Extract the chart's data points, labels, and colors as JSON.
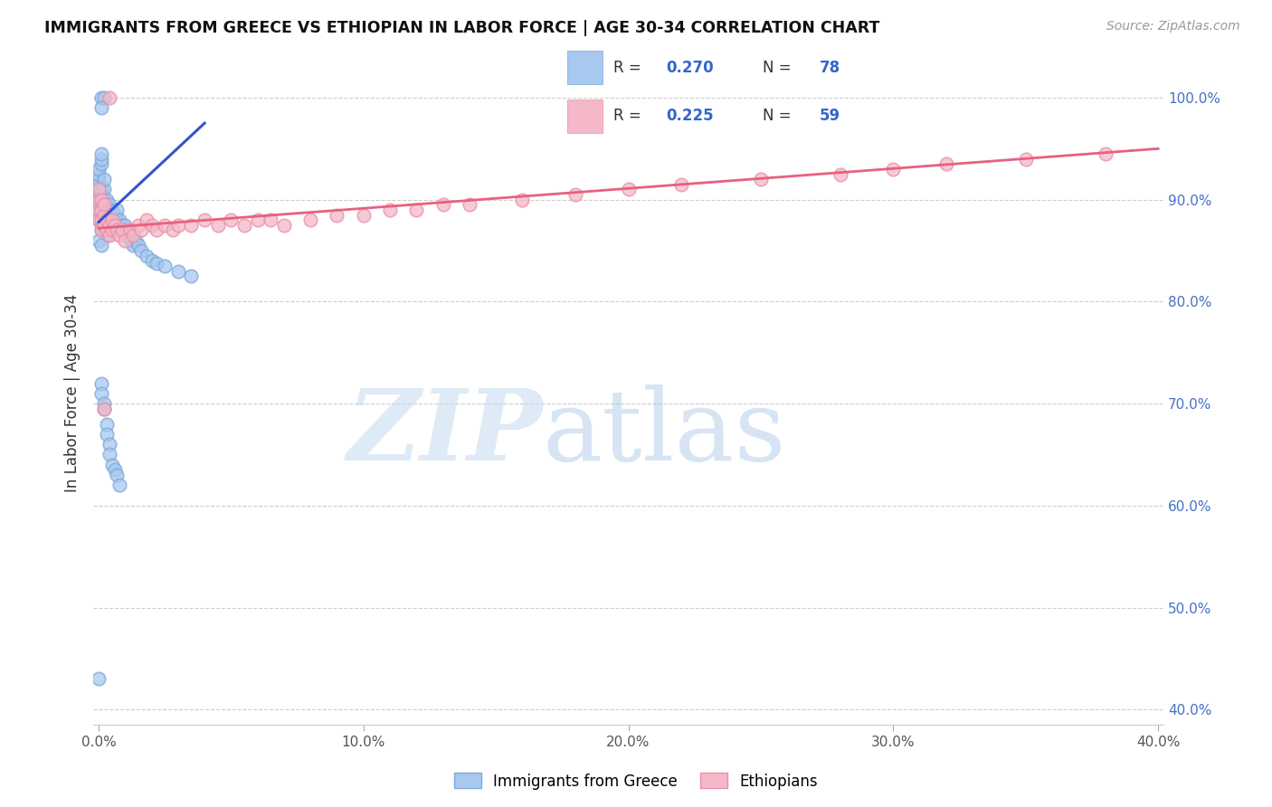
{
  "title": "IMMIGRANTS FROM GREECE VS ETHIOPIAN IN LABOR FORCE | AGE 30-34 CORRELATION CHART",
  "source": "Source: ZipAtlas.com",
  "ylabel": "In Labor Force | Age 30-34",
  "xlim": [
    -0.002,
    0.402
  ],
  "ylim": [
    0.385,
    1.035
  ],
  "xticks": [
    0.0,
    0.1,
    0.2,
    0.3,
    0.4
  ],
  "xticklabels": [
    "0.0%",
    "10.0%",
    "20.0%",
    "30.0%",
    "40.0%"
  ],
  "yticks_right": [
    0.4,
    0.5,
    0.6,
    0.7,
    0.8,
    0.9,
    1.0
  ],
  "yticklabels_right": [
    "40.0%",
    "50.0%",
    "60.0%",
    "70.0%",
    "80.0%",
    "90.0%",
    "100.0%"
  ],
  "greece_color": "#a8c8f0",
  "greece_edge": "#7aaad8",
  "ethiopia_color": "#f5b8c8",
  "ethiopia_edge": "#e890a8",
  "greece_line_color": "#3355cc",
  "ethiopia_line_color": "#e86080",
  "greece_R": 0.27,
  "greece_N": 78,
  "ethiopia_R": 0.225,
  "ethiopia_N": 59,
  "legend_labels": [
    "Immigrants from Greece",
    "Ethiopians"
  ],
  "greece_x": [
    0.0,
    0.0,
    0.0,
    0.0,
    0.0,
    0.0,
    0.0,
    0.0,
    0.0,
    0.0,
    0.001,
    0.001,
    0.001,
    0.001,
    0.001,
    0.001,
    0.001,
    0.001,
    0.001,
    0.001,
    0.001,
    0.001,
    0.002,
    0.002,
    0.002,
    0.002,
    0.002,
    0.002,
    0.003,
    0.003,
    0.003,
    0.003,
    0.004,
    0.004,
    0.004,
    0.004,
    0.005,
    0.005,
    0.005,
    0.006,
    0.006,
    0.007,
    0.007,
    0.008,
    0.008,
    0.009,
    0.01,
    0.01,
    0.011,
    0.012,
    0.013,
    0.014,
    0.015,
    0.016,
    0.018,
    0.02,
    0.022,
    0.025,
    0.03,
    0.035,
    0.0,
    0.0,
    0.001,
    0.001,
    0.001,
    0.002,
    0.002,
    0.003,
    0.003,
    0.004,
    0.004,
    0.005,
    0.006,
    0.007,
    0.008,
    0.001,
    0.002,
    0.001
  ],
  "greece_y": [
    0.88,
    0.89,
    0.895,
    0.9,
    0.905,
    0.91,
    0.915,
    0.92,
    0.925,
    0.93,
    0.87,
    0.875,
    0.88,
    0.885,
    0.89,
    0.895,
    0.9,
    0.905,
    0.91,
    0.935,
    0.94,
    0.945,
    0.87,
    0.875,
    0.88,
    0.9,
    0.91,
    0.92,
    0.865,
    0.875,
    0.89,
    0.9,
    0.87,
    0.88,
    0.89,
    0.895,
    0.875,
    0.88,
    0.89,
    0.88,
    0.885,
    0.88,
    0.89,
    0.875,
    0.88,
    0.875,
    0.87,
    0.875,
    0.865,
    0.86,
    0.855,
    0.86,
    0.855,
    0.85,
    0.845,
    0.84,
    0.838,
    0.835,
    0.83,
    0.825,
    0.86,
    0.43,
    0.855,
    0.72,
    0.71,
    0.7,
    0.695,
    0.68,
    0.67,
    0.66,
    0.65,
    0.64,
    0.635,
    0.63,
    0.62,
    1.0,
    1.0,
    0.99
  ],
  "ethiopia_x": [
    0.0,
    0.0,
    0.0,
    0.0,
    0.001,
    0.001,
    0.001,
    0.001,
    0.002,
    0.002,
    0.002,
    0.003,
    0.003,
    0.004,
    0.004,
    0.005,
    0.005,
    0.006,
    0.007,
    0.008,
    0.009,
    0.01,
    0.012,
    0.013,
    0.015,
    0.016,
    0.018,
    0.02,
    0.022,
    0.025,
    0.028,
    0.03,
    0.035,
    0.04,
    0.045,
    0.05,
    0.055,
    0.06,
    0.065,
    0.07,
    0.08,
    0.09,
    0.1,
    0.11,
    0.12,
    0.13,
    0.14,
    0.16,
    0.18,
    0.2,
    0.22,
    0.25,
    0.28,
    0.3,
    0.32,
    0.35,
    0.38,
    0.002,
    0.004
  ],
  "ethiopia_y": [
    0.88,
    0.89,
    0.9,
    0.91,
    0.87,
    0.88,
    0.89,
    0.9,
    0.875,
    0.885,
    0.895,
    0.87,
    0.88,
    0.865,
    0.875,
    0.87,
    0.88,
    0.875,
    0.87,
    0.865,
    0.87,
    0.86,
    0.87,
    0.865,
    0.875,
    0.87,
    0.88,
    0.875,
    0.87,
    0.875,
    0.87,
    0.875,
    0.875,
    0.88,
    0.875,
    0.88,
    0.875,
    0.88,
    0.88,
    0.875,
    0.88,
    0.885,
    0.885,
    0.89,
    0.89,
    0.895,
    0.895,
    0.9,
    0.905,
    0.91,
    0.915,
    0.92,
    0.925,
    0.93,
    0.935,
    0.94,
    0.945,
    0.695,
    1.0
  ],
  "greece_line_x": [
    0.0,
    0.04
  ],
  "greece_line_y": [
    0.878,
    0.975
  ],
  "ethiopia_line_x": [
    0.0,
    0.4
  ],
  "ethiopia_line_y": [
    0.872,
    0.95
  ]
}
